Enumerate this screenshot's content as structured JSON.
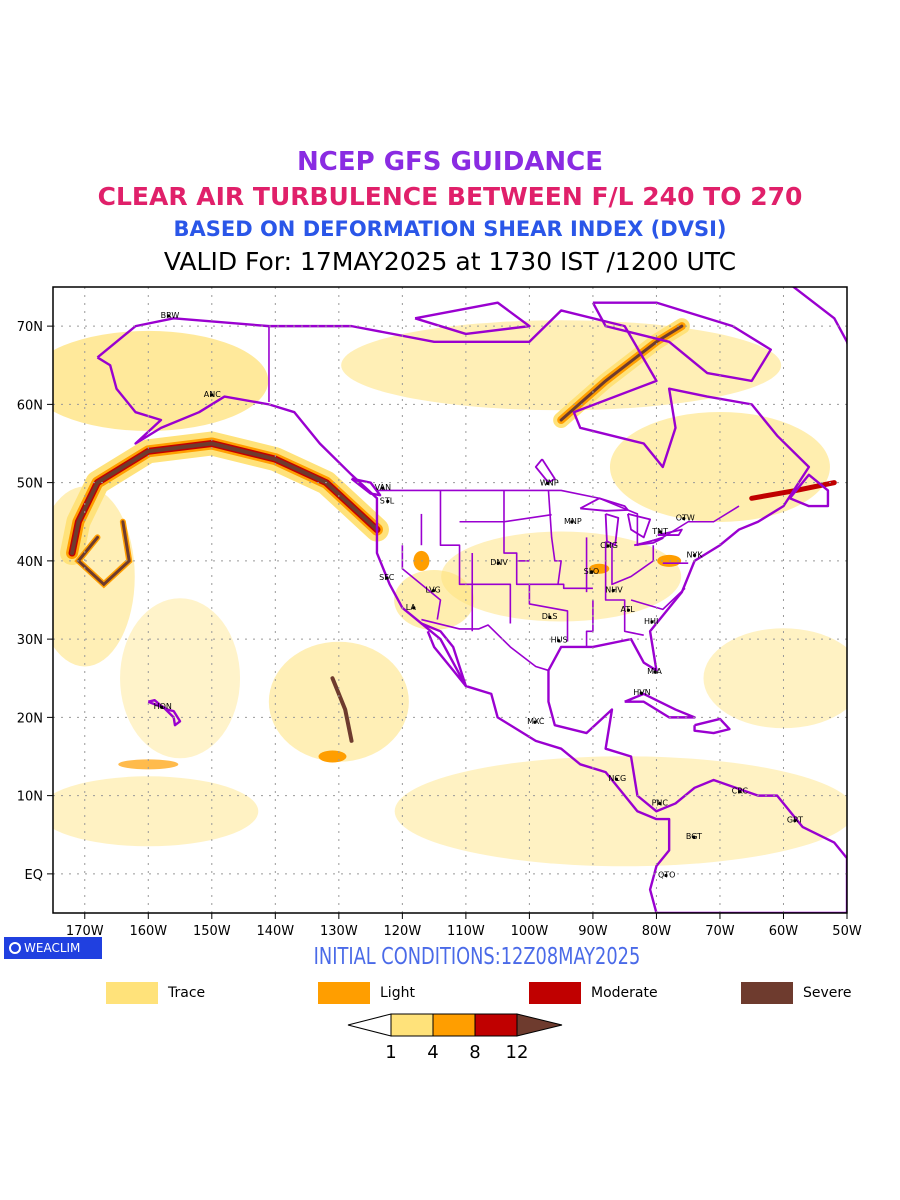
{
  "titles": {
    "line1": "NCEP GFS GUIDANCE",
    "line2": "CLEAR AIR TURBULENCE BETWEEN F/L 240 TO 270",
    "line3": "BASED ON DEFORMATION SHEAR INDEX (DVSI)",
    "line4": "VALID For: 17MAY2025 at 1730 IST /1200 UTC"
  },
  "map": {
    "lat_labels": [
      "70N",
      "60N",
      "50N",
      "40N",
      "30N",
      "20N",
      "10N",
      "EQ"
    ],
    "lon_labels": [
      "170W",
      "160W",
      "150W",
      "140W",
      "130W",
      "120W",
      "110W",
      "100W",
      "90W",
      "80W",
      "70W",
      "60W",
      "50W"
    ],
    "extent": {
      "lon": [
        -175,
        -50
      ],
      "lat": [
        -5,
        75
      ]
    },
    "cities": [
      {
        "name": "BRW",
        "lat": 71.3,
        "lon": -156.8
      },
      {
        "name": "ANC",
        "lat": 61.2,
        "lon": -150.0
      },
      {
        "name": "VAN",
        "lat": 49.3,
        "lon": -123.1
      },
      {
        "name": "STL",
        "lat": 47.6,
        "lon": -122.3
      },
      {
        "name": "WNP",
        "lat": 49.9,
        "lon": -97.1
      },
      {
        "name": "MNP",
        "lat": 44.98,
        "lon": -93.3
      },
      {
        "name": "OTW",
        "lat": 45.4,
        "lon": -75.7
      },
      {
        "name": "TNT",
        "lat": 43.7,
        "lon": -79.4
      },
      {
        "name": "CHG",
        "lat": 41.9,
        "lon": -87.6
      },
      {
        "name": "NYK",
        "lat": 40.7,
        "lon": -74.0
      },
      {
        "name": "SFC",
        "lat": 37.8,
        "lon": -122.4
      },
      {
        "name": "DNV",
        "lat": 39.7,
        "lon": -104.9
      },
      {
        "name": "SLO",
        "lat": 38.6,
        "lon": -90.2
      },
      {
        "name": "LVG",
        "lat": 36.2,
        "lon": -115.1
      },
      {
        "name": "NHV",
        "lat": 36.2,
        "lon": -86.8
      },
      {
        "name": "LA",
        "lat": 34.0,
        "lon": -118.2
      },
      {
        "name": "ATL",
        "lat": 33.7,
        "lon": -84.4
      },
      {
        "name": "DLS",
        "lat": 32.8,
        "lon": -96.8
      },
      {
        "name": "HHI",
        "lat": 32.2,
        "lon": -80.7
      },
      {
        "name": "HUS",
        "lat": 29.8,
        "lon": -95.4
      },
      {
        "name": "MIA",
        "lat": 25.8,
        "lon": -80.2
      },
      {
        "name": "HVN",
        "lat": 23.1,
        "lon": -82.4
      },
      {
        "name": "HON",
        "lat": 21.3,
        "lon": -157.9
      },
      {
        "name": "MXC",
        "lat": 19.4,
        "lon": -99.1
      },
      {
        "name": "NCG",
        "lat": 12.1,
        "lon": -86.3
      },
      {
        "name": "CRC",
        "lat": 10.5,
        "lon": -66.9
      },
      {
        "name": "PNC",
        "lat": 9.0,
        "lon": -79.5
      },
      {
        "name": "GRT",
        "lat": 6.8,
        "lon": -58.2
      },
      {
        "name": "BGT",
        "lat": 4.7,
        "lon": -74.1
      },
      {
        "name": "QTO",
        "lat": -0.2,
        "lon": -78.5
      }
    ]
  },
  "branding": {
    "badge_text": "WEACLIM"
  },
  "initial_conditions": "INITIAL CONDITIONS:12Z08MAY2025",
  "legend": [
    {
      "label": "Trace",
      "color": "#ffe27a"
    },
    {
      "label": "Light",
      "color": "#ff9e00"
    },
    {
      "label": "Moderate",
      "color": "#c00000"
    },
    {
      "label": "Severe",
      "color": "#6e3b2e"
    }
  ],
  "colorbar": {
    "ticks": [
      "1",
      "4",
      "8",
      "12"
    ],
    "colors": [
      "#ffffff",
      "#ffe27a",
      "#ff9e00",
      "#c00000",
      "#6e3b2e"
    ]
  },
  "colors": {
    "coastline": "#9a00d0",
    "plot_border": "#000000",
    "grid": "#999999"
  }
}
